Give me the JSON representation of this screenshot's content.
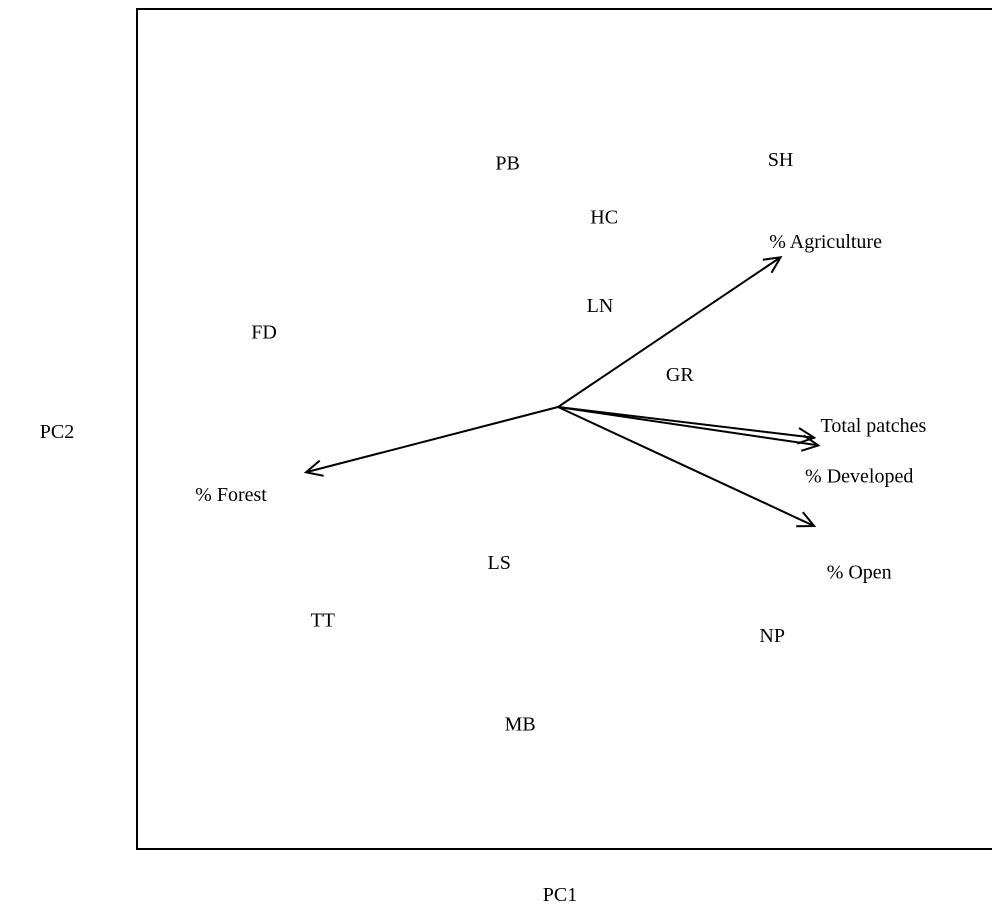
{
  "chart_data": {
    "type": "scatter",
    "subtype": "pca-biplot",
    "title": "",
    "xlabel": "PC1",
    "ylabel": "PC2",
    "xlim": [
      -1,
      1
    ],
    "ylim": [
      -1,
      1
    ],
    "grid": false,
    "legend": "none",
    "axis_ticks": false,
    "points": [
      {
        "label": "PB",
        "x": -0.12,
        "y": 0.63
      },
      {
        "label": "SH",
        "x": 0.53,
        "y": 0.64
      },
      {
        "label": "HC",
        "x": 0.11,
        "y": 0.49
      },
      {
        "label": "LN",
        "x": 0.1,
        "y": 0.26
      },
      {
        "label": "FD",
        "x": -0.7,
        "y": 0.19
      },
      {
        "label": "GR",
        "x": 0.29,
        "y": 0.08
      },
      {
        "label": "LS",
        "x": -0.14,
        "y": -0.41
      },
      {
        "label": "TT",
        "x": -0.56,
        "y": -0.56
      },
      {
        "label": "NP",
        "x": 0.51,
        "y": -0.6
      },
      {
        "label": "MB",
        "x": -0.09,
        "y": -0.83
      }
    ],
    "vectors": [
      {
        "label": "% Agriculture",
        "x": 0.53,
        "y": 0.39
      },
      {
        "label": "Total patches",
        "x": 0.62,
        "y": -0.1
      },
      {
        "label": "% Developed",
        "x": 0.61,
        "y": -0.08
      },
      {
        "label": "% Open",
        "x": 0.61,
        "y": -0.31
      },
      {
        "label": "% Forest",
        "x": -0.6,
        "y": -0.17
      }
    ],
    "vector_origin": {
      "x": 0.0,
      "y": 0.0
    }
  },
  "colors": {
    "ink": "#000000",
    "background": "#ffffff"
  }
}
